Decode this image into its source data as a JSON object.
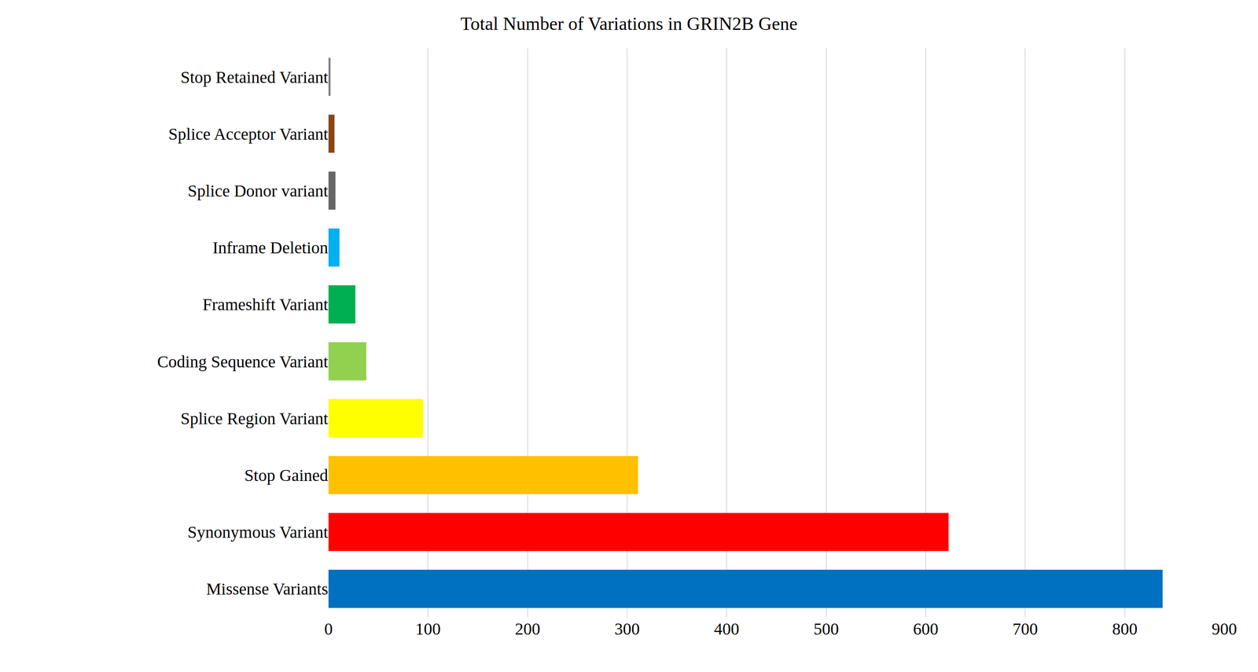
{
  "chart_data": {
    "type": "bar",
    "orientation": "horizontal",
    "title": "Total Number of Variations in GRIN2B Gene",
    "categories": [
      "Missense Variants",
      "Synonymous Variant",
      "Stop Gained",
      "Splice Region Variant",
      "Coding Sequence Variant",
      "Frameshift Variant",
      "Inframe Deletion",
      "Splice Donor variant",
      "Splice Acceptor Variant",
      "Stop Retained Variant"
    ],
    "values": [
      838,
      623,
      311,
      95,
      38,
      27,
      11,
      7,
      6,
      2
    ],
    "colors": [
      "#0070c0",
      "#ff0000",
      "#ffc000",
      "#ffff00",
      "#92d050",
      "#00b050",
      "#00b0f0",
      "#666666",
      "#8b4513",
      "#7f7f7f"
    ],
    "xlim": [
      0,
      900
    ],
    "xticks": [
      0,
      100,
      200,
      300,
      400,
      500,
      600,
      700,
      800,
      900
    ],
    "grid": true
  }
}
